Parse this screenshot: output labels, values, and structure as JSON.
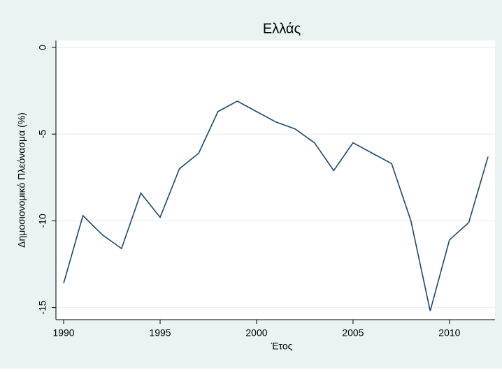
{
  "chart_data": {
    "type": "line",
    "title": "Ελλάς",
    "x_label": "Έτος",
    "y_label": "Δημοσιονομικό Πλεόνασμα (%)",
    "x": [
      1990,
      1991,
      1992,
      1993,
      1994,
      1995,
      1996,
      1997,
      1998,
      1999,
      2000,
      2001,
      2002,
      2003,
      2004,
      2005,
      2006,
      2007,
      2008,
      2009,
      2010,
      2011,
      2012
    ],
    "series": [
      {
        "name": "Ελλάς",
        "color": "#1a476f",
        "values": [
          -13.6,
          -9.7,
          -10.8,
          -11.6,
          -8.4,
          -9.8,
          -7.0,
          -6.1,
          -3.7,
          -3.1,
          -3.7,
          -4.3,
          -4.7,
          -5.5,
          -7.1,
          -5.5,
          -6.1,
          -6.7,
          -10.0,
          -15.2,
          -11.1,
          -10.1,
          -6.3
        ]
      }
    ],
    "xlim": [
      1989.6,
      2012.36
    ],
    "xticks": [
      1990,
      1995,
      2000,
      2005,
      2010
    ],
    "ylim": [
      -15.7,
      0.4
    ],
    "yticks": [
      -15,
      -10,
      -5,
      0
    ],
    "grid": true
  }
}
